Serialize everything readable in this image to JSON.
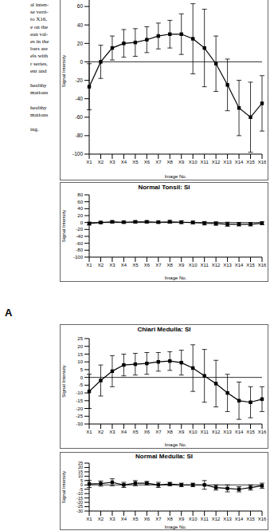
{
  "panel_label": "A",
  "caption_fragments": [
    [
      "al inten-",
      "se verti-",
      "to X16,",
      "e on the",
      "ean val-",
      "es in the",
      "bars are",
      "els with",
      "r series,",
      "ent and"
    ],
    [
      "healthy",
      "mations"
    ],
    [
      "healthy",
      "mations"
    ],
    [
      "ing."
    ]
  ],
  "chart_data": [
    {
      "type": "line",
      "x_label": "Image No.",
      "y_label": "Signal Intensity",
      "categories": [
        "X1",
        "X2",
        "X3",
        "X4",
        "X5",
        "X6",
        "X7",
        "X8",
        "X9",
        "X10",
        "X11",
        "X12",
        "X13",
        "X14",
        "X15",
        "X16"
      ],
      "values": [
        -27,
        0,
        15,
        20,
        21,
        24,
        28,
        30,
        30,
        25,
        15,
        -2,
        -25,
        -50,
        -60,
        -45
      ],
      "errors": [
        25,
        18,
        13,
        15,
        15,
        14,
        14,
        15,
        22,
        38,
        42,
        30,
        28,
        30,
        38,
        30
      ],
      "ylim": [
        -100,
        80
      ],
      "yticks": [
        -100,
        -80,
        -60,
        -40,
        -20,
        0,
        20,
        40,
        60
      ],
      "color": "#000000",
      "marker": "square",
      "grid": false
    },
    {
      "type": "line",
      "title": "Normal Tonsil: SI",
      "x_label": "Image No.",
      "y_label": "Signal Intensity",
      "categories": [
        "X1",
        "X2",
        "X3",
        "X4",
        "X5",
        "X6",
        "X7",
        "X8",
        "X9",
        "X10",
        "X11",
        "X12",
        "X13",
        "X14",
        "X15",
        "X16"
      ],
      "values": [
        -3,
        0,
        2,
        1,
        2,
        2,
        1,
        2,
        1,
        0,
        -2,
        -3,
        -5,
        -5,
        -5,
        -2
      ],
      "errors": [
        4,
        3,
        3,
        3,
        3,
        3,
        3,
        4,
        4,
        4,
        5,
        5,
        6,
        5,
        5,
        4
      ],
      "ylim": [
        -100,
        80
      ],
      "yticks": [
        -100,
        -80,
        -60,
        -40,
        -20,
        0,
        20,
        40,
        60,
        80
      ],
      "color": "#000000",
      "marker": "square",
      "grid": false
    },
    {
      "type": "line",
      "title": "Chiari Medulla: SI",
      "x_label": "Image No.",
      "y_label": "Signal Intensity",
      "categories": [
        "X1",
        "X2",
        "X3",
        "X4",
        "X5",
        "X6",
        "X7",
        "X8",
        "X9",
        "X10",
        "X11",
        "X12",
        "X13",
        "X14",
        "X15",
        "X16"
      ],
      "values": [
        -9,
        -2,
        4,
        8,
        8.5,
        9,
        10,
        10.5,
        9.5,
        6,
        1,
        -4,
        -10,
        -15,
        -16,
        -14
      ],
      "errors": [
        11,
        10,
        10,
        7,
        7,
        7,
        6,
        6,
        8,
        15,
        17,
        15,
        12,
        12,
        10,
        8
      ],
      "ylim": [
        -30,
        25
      ],
      "yticks": [
        -30,
        -25,
        -20,
        -15,
        -10,
        -5,
        0,
        5,
        10,
        15,
        20,
        25
      ],
      "color": "#000000",
      "marker": "square",
      "grid": false
    },
    {
      "type": "line",
      "title": "Normal Medulla: SI",
      "x_label": "Image No.",
      "y_label": "Signal Intensity",
      "categories": [
        "X1",
        "X2",
        "X3",
        "X4",
        "X5",
        "X6",
        "X7",
        "X8",
        "X9",
        "X10",
        "X11",
        "X12",
        "X13",
        "X14",
        "X15",
        "X16"
      ],
      "values": [
        1,
        1.5,
        3,
        0,
        2,
        2,
        0,
        1,
        0,
        0,
        0,
        -3,
        -4,
        -5,
        -3,
        -1
      ],
      "errors": [
        4,
        3,
        4,
        3,
        3,
        2,
        3,
        2,
        2,
        2,
        5,
        3,
        4,
        3,
        3,
        3
      ],
      "ylim": [
        -30,
        25
      ],
      "yticks": [
        -30,
        -25,
        -20,
        -15,
        -10,
        -5,
        0,
        5,
        10,
        15,
        20,
        25
      ],
      "color": "#000000",
      "marker": "square",
      "grid": false
    }
  ]
}
